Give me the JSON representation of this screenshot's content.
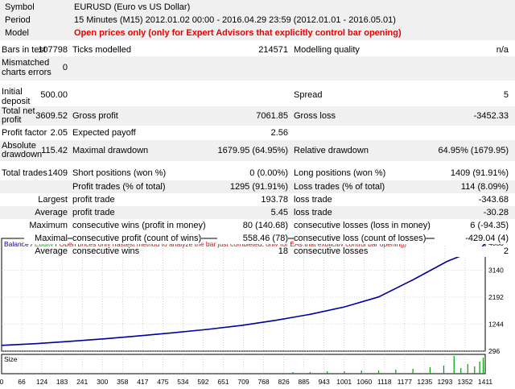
{
  "header": {
    "symbol_label": "Symbol",
    "symbol_value": "EURUSD (Euro vs US Dollar)",
    "period_label": "Period",
    "period_value": "15 Minutes (M15) 2012.01.02 00:00 - 2016.04.29 23:59 (2012.01.01 - 2016.05.01)",
    "model_label": "Model",
    "model_value": "Open prices only (only for Expert Advisors that explicitly control bar opening)"
  },
  "stats": {
    "bars_in_test_label": "Bars in test",
    "bars_in_test": "107798",
    "ticks_modelled_label": "Ticks modelled",
    "ticks_modelled": "214571",
    "modelling_quality_label": "Modelling quality",
    "modelling_quality": "n/a",
    "mismatched_label_1": "Mismatched",
    "mismatched_label_2": "charts errors",
    "mismatched": "0",
    "initial_deposit_label_1": "Initial",
    "initial_deposit_label_2": "deposit",
    "initial_deposit": "500.00",
    "spread_label": "Spread",
    "spread": "5",
    "total_net_label_1": "Total net",
    "total_net_label_2": "profit",
    "total_net": "3609.52",
    "gross_profit_label": "Gross profit",
    "gross_profit": "7061.85",
    "gross_loss_label": "Gross loss",
    "gross_loss": "-3452.33",
    "profit_factor_label": "Profit factor",
    "profit_factor": "2.05",
    "expected_payoff_label": "Expected payoff",
    "expected_payoff": "2.56",
    "absolute_dd_label_1": "Absolute",
    "absolute_dd_label_2": "drawdown",
    "absolute_dd": "115.42",
    "maximal_dd_label": "Maximal drawdown",
    "maximal_dd": "1679.95 (64.95%)",
    "relative_dd_label": "Relative drawdown",
    "relative_dd": "64.95% (1679.95)",
    "total_trades_label": "Total trades",
    "total_trades": "1409",
    "short_label": "Short positions (won %)",
    "short": "0 (0.00%)",
    "long_label": "Long positions (won %)",
    "long": "1409 (91.91%)",
    "profit_trades_label": "Profit trades (% of total)",
    "profit_trades": "1295 (91.91%)",
    "loss_trades_label": "Loss trades (% of total)",
    "loss_trades": "114 (8.09%)",
    "largest_label": "Largest",
    "profit_trade_label": "profit trade",
    "largest_profit": "193.78",
    "loss_trade_label": "loss trade",
    "largest_loss": "-343.68",
    "average_label": "Average",
    "average_profit": "5.45",
    "average_loss": "-30.28",
    "maximum_label": "Maximum",
    "cons_wins_money_label": "consecutive wins (profit in money)",
    "cons_wins_money": "80 (140.68)",
    "cons_losses_money_label": "consecutive losses (loss in money)",
    "cons_losses_money": "6 (-94.35)",
    "maximal_label": "Maximal",
    "cons_profit_count_label": "consecutive profit (count of wins)",
    "cons_profit_count": "558.46 (78)",
    "cons_loss_count_label": "consecutive loss (count of losses)",
    "cons_loss_count": "-429.04 (4)",
    "cons_wins_label": "consecutive wins",
    "avg_cons_wins": "18",
    "cons_losses_label": "consecutive losses",
    "avg_cons_losses": "2"
  },
  "chart_legend": {
    "balance": "Balance",
    "sep1": " / ",
    "equity": "Equity",
    "sep2": " / ",
    "model": "Open prices only (fastest method to analyze the bar just completed, only for EAs that explicitly control bar opening)"
  },
  "size_label": "Size",
  "colors": {
    "balance": "#0000a0",
    "equity": "#00b000",
    "model": "#e00000",
    "size_bars": "#00a000",
    "grid": "#b4b4b4"
  },
  "chart_data": {
    "type": "line",
    "series": [
      {
        "name": "Balance",
        "x": [
          0,
          100,
          200,
          300,
          400,
          500,
          600,
          700,
          800,
          900,
          1000,
          1100,
          1200,
          1300,
          1400,
          1411
        ],
        "values": [
          500,
          560,
          640,
          730,
          830,
          940,
          1060,
          1200,
          1380,
          1590,
          1850,
          2200,
          2800,
          3450,
          3930,
          4090
        ]
      }
    ],
    "x_ticks": [
      "0",
      "66",
      "124",
      "183",
      "241",
      "300",
      "358",
      "417",
      "475",
      "534",
      "592",
      "651",
      "709",
      "768",
      "826",
      "885",
      "943",
      "1001",
      "1060",
      "1118",
      "1177",
      "1235",
      "1293",
      "1352",
      "1411"
    ],
    "y_ticks": [
      "4088",
      "3140",
      "2192",
      "1244",
      "296"
    ],
    "ylim": [
      296,
      4088
    ],
    "xlim": [
      0,
      1411
    ]
  }
}
